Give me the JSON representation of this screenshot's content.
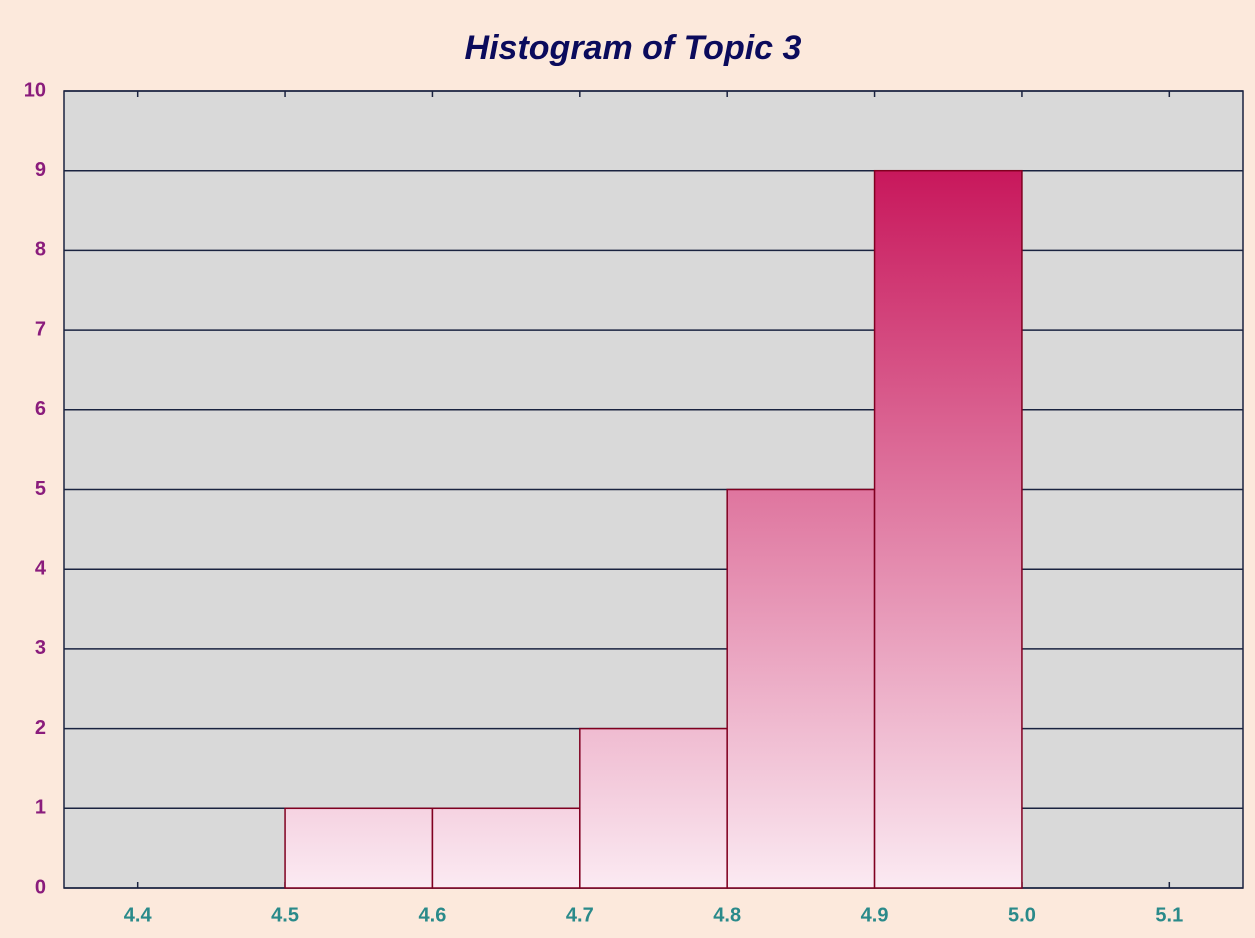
{
  "chart_data": {
    "type": "histogram",
    "title": "Histogram of Topic 3",
    "bins": [
      4.5,
      4.6,
      4.7,
      4.8,
      4.9,
      5.0
    ],
    "values": [
      1,
      1,
      2,
      5,
      9
    ],
    "color": "#c8185c",
    "xlim": [
      4.35,
      5.15
    ],
    "xticks": [
      4.4,
      4.5,
      4.6,
      4.7,
      4.8,
      4.9,
      {
        "value": 5.0,
        "label": "5.0"
      },
      5.1
    ],
    "ylim": [
      0,
      10
    ],
    "yticks": [
      0,
      1,
      2,
      3,
      4,
      5,
      6,
      7,
      8,
      9,
      10
    ],
    "grid": true
  }
}
